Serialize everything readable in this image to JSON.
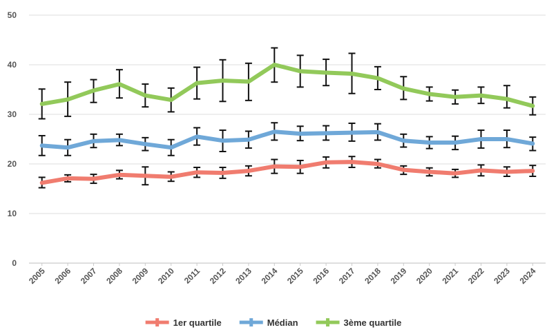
{
  "chart_data": {
    "type": "line",
    "categories": [
      "2005",
      "2006",
      "2007",
      "2008",
      "2009",
      "2010",
      "2011",
      "2012",
      "2013",
      "2014",
      "2015",
      "2016",
      "2017",
      "2018",
      "2019",
      "2020",
      "2021",
      "2022",
      "2023",
      "2024"
    ],
    "ylim": [
      0,
      50
    ],
    "yticks": [
      0,
      10,
      20,
      30,
      40,
      50
    ],
    "grid": true,
    "legend_position": "bottom",
    "series": [
      {
        "name": "1er quartile",
        "color": "#f07c6f",
        "values": [
          16.2,
          17.1,
          17.0,
          17.8,
          17.6,
          17.4,
          18.3,
          18.2,
          18.6,
          19.5,
          19.4,
          20.3,
          20.4,
          20.0,
          18.8,
          18.4,
          18.1,
          18.7,
          18.4,
          18.6
        ],
        "err_low": [
          15.2,
          16.4,
          16.1,
          17.0,
          15.8,
          16.5,
          17.3,
          17.1,
          17.6,
          18.1,
          18.1,
          19.2,
          19.3,
          19.2,
          17.9,
          17.6,
          17.3,
          17.6,
          17.5,
          17.5
        ],
        "err_high": [
          17.3,
          17.8,
          17.9,
          18.7,
          19.4,
          18.4,
          19.3,
          19.3,
          19.6,
          20.9,
          20.7,
          21.4,
          21.5,
          20.9,
          19.6,
          19.2,
          18.9,
          19.8,
          19.4,
          19.7
        ]
      },
      {
        "name": "Médian",
        "color": "#6fa8d8",
        "values": [
          23.7,
          23.3,
          24.6,
          24.8,
          24.0,
          23.3,
          25.5,
          24.7,
          24.9,
          26.5,
          26.1,
          26.2,
          26.3,
          26.4,
          24.7,
          24.3,
          24.3,
          25.0,
          25.0,
          24.1
        ],
        "err_low": [
          21.7,
          21.7,
          23.3,
          23.7,
          22.7,
          21.7,
          23.8,
          22.5,
          23.2,
          24.8,
          24.7,
          24.8,
          24.6,
          24.8,
          23.4,
          23.1,
          22.9,
          23.2,
          23.3,
          22.7
        ],
        "err_high": [
          25.7,
          24.9,
          26.0,
          26.0,
          25.3,
          24.9,
          27.3,
          26.8,
          26.6,
          28.3,
          27.6,
          27.7,
          28.2,
          28.1,
          26.0,
          25.5,
          25.6,
          26.8,
          26.8,
          25.4
        ]
      },
      {
        "name": "3ème quartile",
        "color": "#92c95a",
        "values": [
          32.1,
          33.0,
          34.8,
          36.1,
          33.8,
          32.9,
          36.3,
          36.8,
          36.6,
          40.0,
          38.7,
          38.4,
          38.2,
          37.3,
          35.2,
          34.1,
          33.5,
          33.8,
          33.1,
          31.7
        ],
        "err_low": [
          29.1,
          29.6,
          32.4,
          33.3,
          31.5,
          30.5,
          33.1,
          32.6,
          32.8,
          36.5,
          35.5,
          35.8,
          34.2,
          35.0,
          33.0,
          32.7,
          32.1,
          32.2,
          31.3,
          29.9
        ],
        "err_high": [
          35.1,
          36.5,
          37.0,
          39.0,
          36.1,
          35.3,
          39.5,
          41.0,
          40.3,
          43.4,
          41.9,
          41.1,
          42.3,
          39.6,
          37.6,
          35.5,
          34.9,
          35.5,
          35.8,
          33.5
        ]
      }
    ]
  }
}
